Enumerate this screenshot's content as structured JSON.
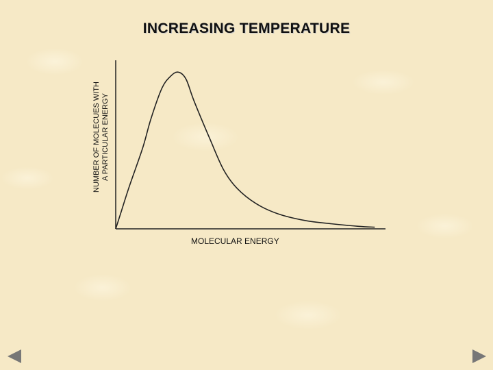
{
  "slide": {
    "prev_icon": "triangle-left-icon",
    "next_icon": "triangle-right-icon"
  },
  "chart_data": {
    "type": "line",
    "title": "INCREASING TEMPERATURE",
    "xlabel": "MOLECULAR ENERGY",
    "ylabel": "NUMBER OF MOLECUES WITH\nA PARTICULAR ENERGY",
    "xlim": [
      0,
      100
    ],
    "ylim": [
      0,
      100
    ],
    "grid": false,
    "series": [
      {
        "x": [
          0,
          2,
          5,
          10,
          13,
          17,
          20,
          23,
          26,
          29,
          35,
          40,
          45,
          52,
          60,
          70,
          80,
          90,
          96
        ],
        "y": [
          0,
          10,
          25,
          48,
          65,
          83,
          90,
          93,
          89,
          76,
          53,
          35,
          24,
          15,
          9,
          5,
          3,
          1.5,
          1
        ]
      }
    ],
    "colors": {
      "curve": "#222222",
      "axes": "#222222"
    }
  }
}
